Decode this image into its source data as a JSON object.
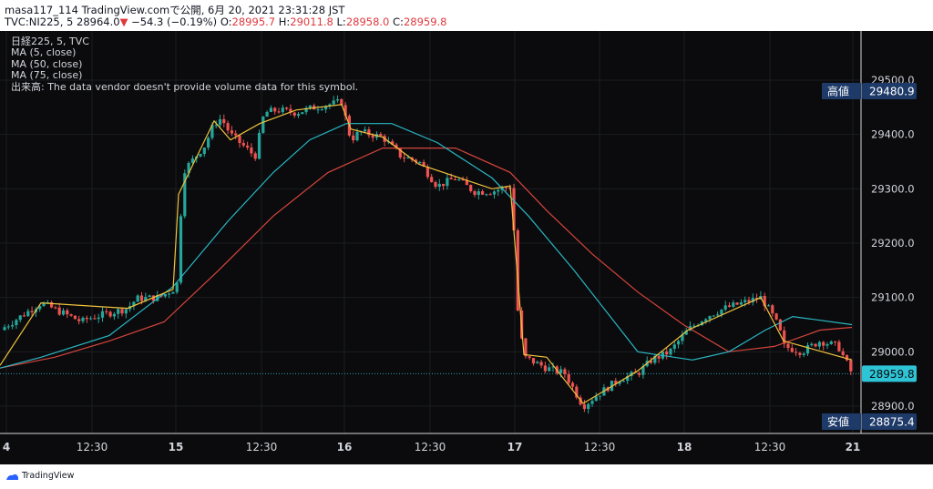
{
  "header": {
    "line1": "masa117_114 TradingView.comで公開, 6月 20, 2021 23:31:28 JST",
    "symbol": "TVC:NI225, 5",
    "last": "28964.0",
    "arrow": "▼",
    "change": "−54.3 (−0.19%)",
    "o_label": "O:",
    "o_value": "28995.7",
    "h_label": "H:",
    "h_value": "29011.8",
    "l_label": "L:",
    "l_value": "28958.0",
    "c_label": "C:",
    "c_value": "28959.8"
  },
  "legend": {
    "title": "日経225, 5, TVC",
    "ma5": "MA (5, close)",
    "ma50": "MA (50, close)",
    "ma75": "MA (75, close)",
    "volume_note": "出来高: The data vendor doesn't provide volume data for this symbol."
  },
  "price_axis": {
    "labels": [
      "29500.0",
      "29400.0",
      "29300.0",
      "29200.0",
      "29100.0",
      "29000.0",
      "28900.0"
    ],
    "high_tag": "高値",
    "high_value": "29480.9",
    "last_value": "28959.8",
    "low_tag": "安値",
    "low_value": "28875.4"
  },
  "time_axis": {
    "labels": [
      "4",
      "12:30",
      "15",
      "12:30",
      "16",
      "12:30",
      "17",
      "12:30",
      "18",
      "12:30",
      "21"
    ]
  },
  "footer": {
    "brand": "TradingView"
  },
  "colors": {
    "background": "#0b0b0d",
    "up": "#26a69a",
    "down": "#ef5350",
    "ma5": "#f0c33c",
    "ma50": "#2ab7c4",
    "ma75": "#d6453d",
    "tag_bg": "#1e3a68",
    "last_bg": "#2ec4d6"
  },
  "chart_data": {
    "type": "candlestick",
    "title": "日経225, 5, TVC",
    "x_sessions": [
      "4",
      "15",
      "16",
      "17",
      "18",
      "21"
    ],
    "y_range": [
      28860,
      29560
    ],
    "high": 29480.9,
    "low": 28875.4,
    "last_close": 28959.8,
    "anchor_x": [
      0,
      45,
      90,
      94,
      140,
      150,
      175,
      190,
      196,
      200,
      225,
      235,
      243,
      253,
      280,
      285,
      290,
      305,
      325,
      345,
      375,
      385,
      395,
      420,
      440,
      460,
      480,
      500,
      520,
      540,
      560,
      563,
      568,
      575,
      600,
      620,
      640,
      655,
      680,
      700,
      715,
      735,
      755,
      775,
      795,
      815,
      835,
      845,
      855,
      860,
      880,
      900,
      920,
      935
    ],
    "anchor_close": [
      29040,
      29090,
      29055,
      29060,
      29080,
      29098,
      29100,
      29115,
      29130,
      29330,
      29380,
      29420,
      29430,
      29400,
      29360,
      29400,
      29440,
      29445,
      29440,
      29450,
      29460,
      29390,
      29405,
      29395,
      29360,
      29350,
      29305,
      29320,
      29295,
      29295,
      29305,
      29260,
      29080,
      28990,
      28970,
      28960,
      28900,
      28920,
      28950,
      28960,
      28985,
      29000,
      29040,
      29065,
      29080,
      29090,
      29100,
      29075,
      29045,
      29010,
      29000,
      29020,
      29010,
      28960
    ],
    "ma5_x": [
      0,
      45,
      140,
      190,
      196,
      235,
      253,
      285,
      325,
      375,
      385,
      420,
      460,
      540,
      560,
      575,
      600,
      640,
      655,
      700,
      755,
      835,
      860,
      935
    ],
    "ma5": [
      28975,
      29090,
      29080,
      29115,
      29290,
      29425,
      29390,
      29420,
      29445,
      29455,
      29410,
      29395,
      29345,
      29300,
      29305,
      28995,
      28990,
      28905,
      28920,
      28965,
      29040,
      29100,
      29020,
      28985
    ],
    "ma50_x": [
      0,
      45,
      120,
      190,
      250,
      300,
      340,
      380,
      430,
      480,
      540,
      580,
      630,
      700,
      760,
      800,
      840,
      870,
      935
    ],
    "ma50": [
      28970,
      28990,
      29030,
      29120,
      29240,
      29330,
      29390,
      29420,
      29420,
      29385,
      29320,
      29250,
      29150,
      29000,
      28985,
      29000,
      29040,
      29065,
      29050
    ],
    "ma75_x": [
      0,
      60,
      120,
      180,
      240,
      300,
      360,
      420,
      500,
      560,
      600,
      650,
      700,
      750,
      800,
      850,
      900,
      935
    ],
    "ma75": [
      28970,
      28990,
      29020,
      29055,
      29150,
      29250,
      29330,
      29375,
      29375,
      29330,
      29260,
      29180,
      29110,
      29050,
      29000,
      29010,
      29040,
      29045
    ],
    "series": [
      {
        "name": "MA (5, close)"
      },
      {
        "name": "MA (50, close)"
      },
      {
        "name": "MA (75, close)"
      }
    ]
  }
}
